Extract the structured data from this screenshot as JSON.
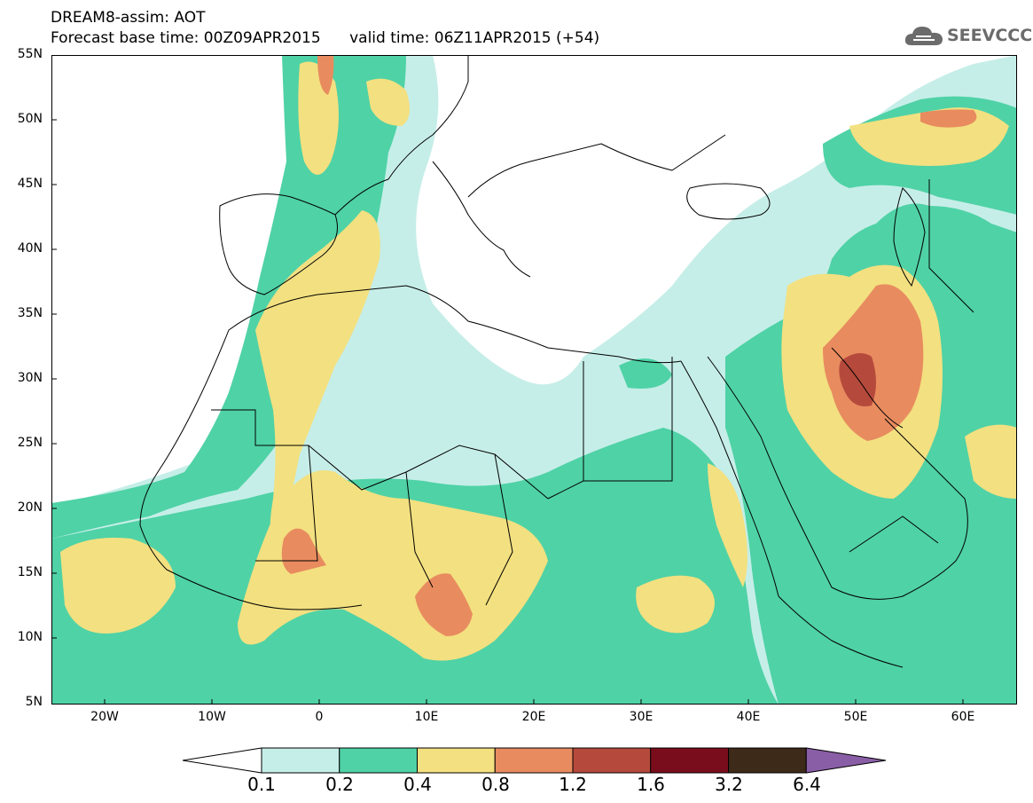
{
  "header": {
    "title_line1": "DREAM8-assim: AOT",
    "title_line2": "Forecast base time: 00Z09APR2015      valid time: 06Z11APR2015 (+54)",
    "logo_text": "SEEVCCC"
  },
  "axes": {
    "lat_labels": [
      "55N",
      "50N",
      "45N",
      "40N",
      "35N",
      "30N",
      "25N",
      "20N",
      "15N",
      "10N",
      "5N"
    ],
    "lon_labels": [
      "20W",
      "10W",
      "0",
      "10E",
      "20E",
      "30E",
      "40E",
      "50E",
      "60E"
    ]
  },
  "colorbar": {
    "labels": [
      "0.1",
      "0.2",
      "0.4",
      "0.8",
      "1.2",
      "1.6",
      "3.2",
      "6.4"
    ],
    "colors": [
      "#ffffff",
      "#c6eee8",
      "#4fd2a6",
      "#f3e080",
      "#e88b5f",
      "#b54a3c",
      "#7a0d1c",
      "#3d2a18",
      "#8a5ea6"
    ]
  },
  "map_palette": {
    "light": "#c6eee8",
    "green": "#4fd2a6",
    "yellow": "#f3e080",
    "orange": "#e88b5f",
    "red": "#b54a3c",
    "border": "#000000"
  }
}
